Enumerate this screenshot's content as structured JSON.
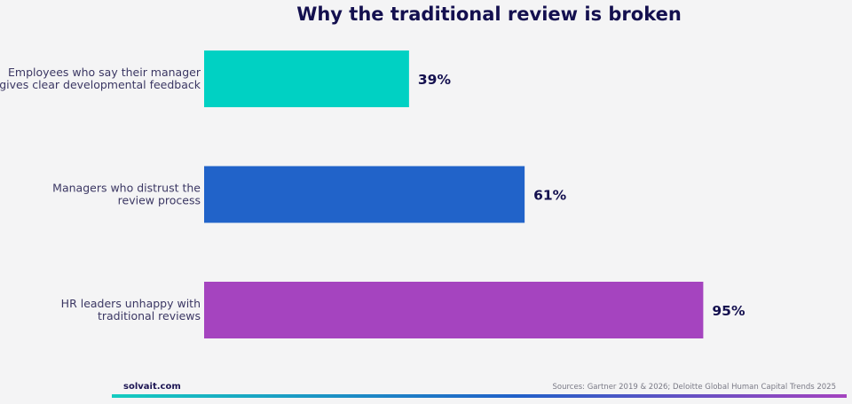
{
  "colors": {
    "background": "#f4f4f5",
    "title": "#14104f",
    "category_text": "#3b3763",
    "value_text": "#14104f",
    "rule_start": "#15ccc0",
    "rule_mid": "#2160c8",
    "rule_end": "#a443bf"
  },
  "chart_data": {
    "type": "bar",
    "orientation": "horizontal",
    "title": "Why the traditional review is broken",
    "xlabel": "",
    "ylabel": "",
    "xlim": [
      0,
      100
    ],
    "grid": false,
    "categories": [
      [
        "Employees who say their manager",
        "gives clear developmental feedback"
      ],
      [
        "Managers who distrust the",
        "review process"
      ],
      [
        "HR leaders unhappy with",
        "traditional reviews"
      ]
    ],
    "values": [
      39,
      61,
      95
    ],
    "value_labels": [
      "39%",
      "61%",
      "95%"
    ],
    "bar_colors": [
      "#00d1c3",
      "#2163c9",
      "#a544bf"
    ]
  },
  "footer": {
    "brand": "solvait.com",
    "source": "Sources: Gartner 2019 & 2026; Deloitte Global Human Capital Trends 2025"
  }
}
